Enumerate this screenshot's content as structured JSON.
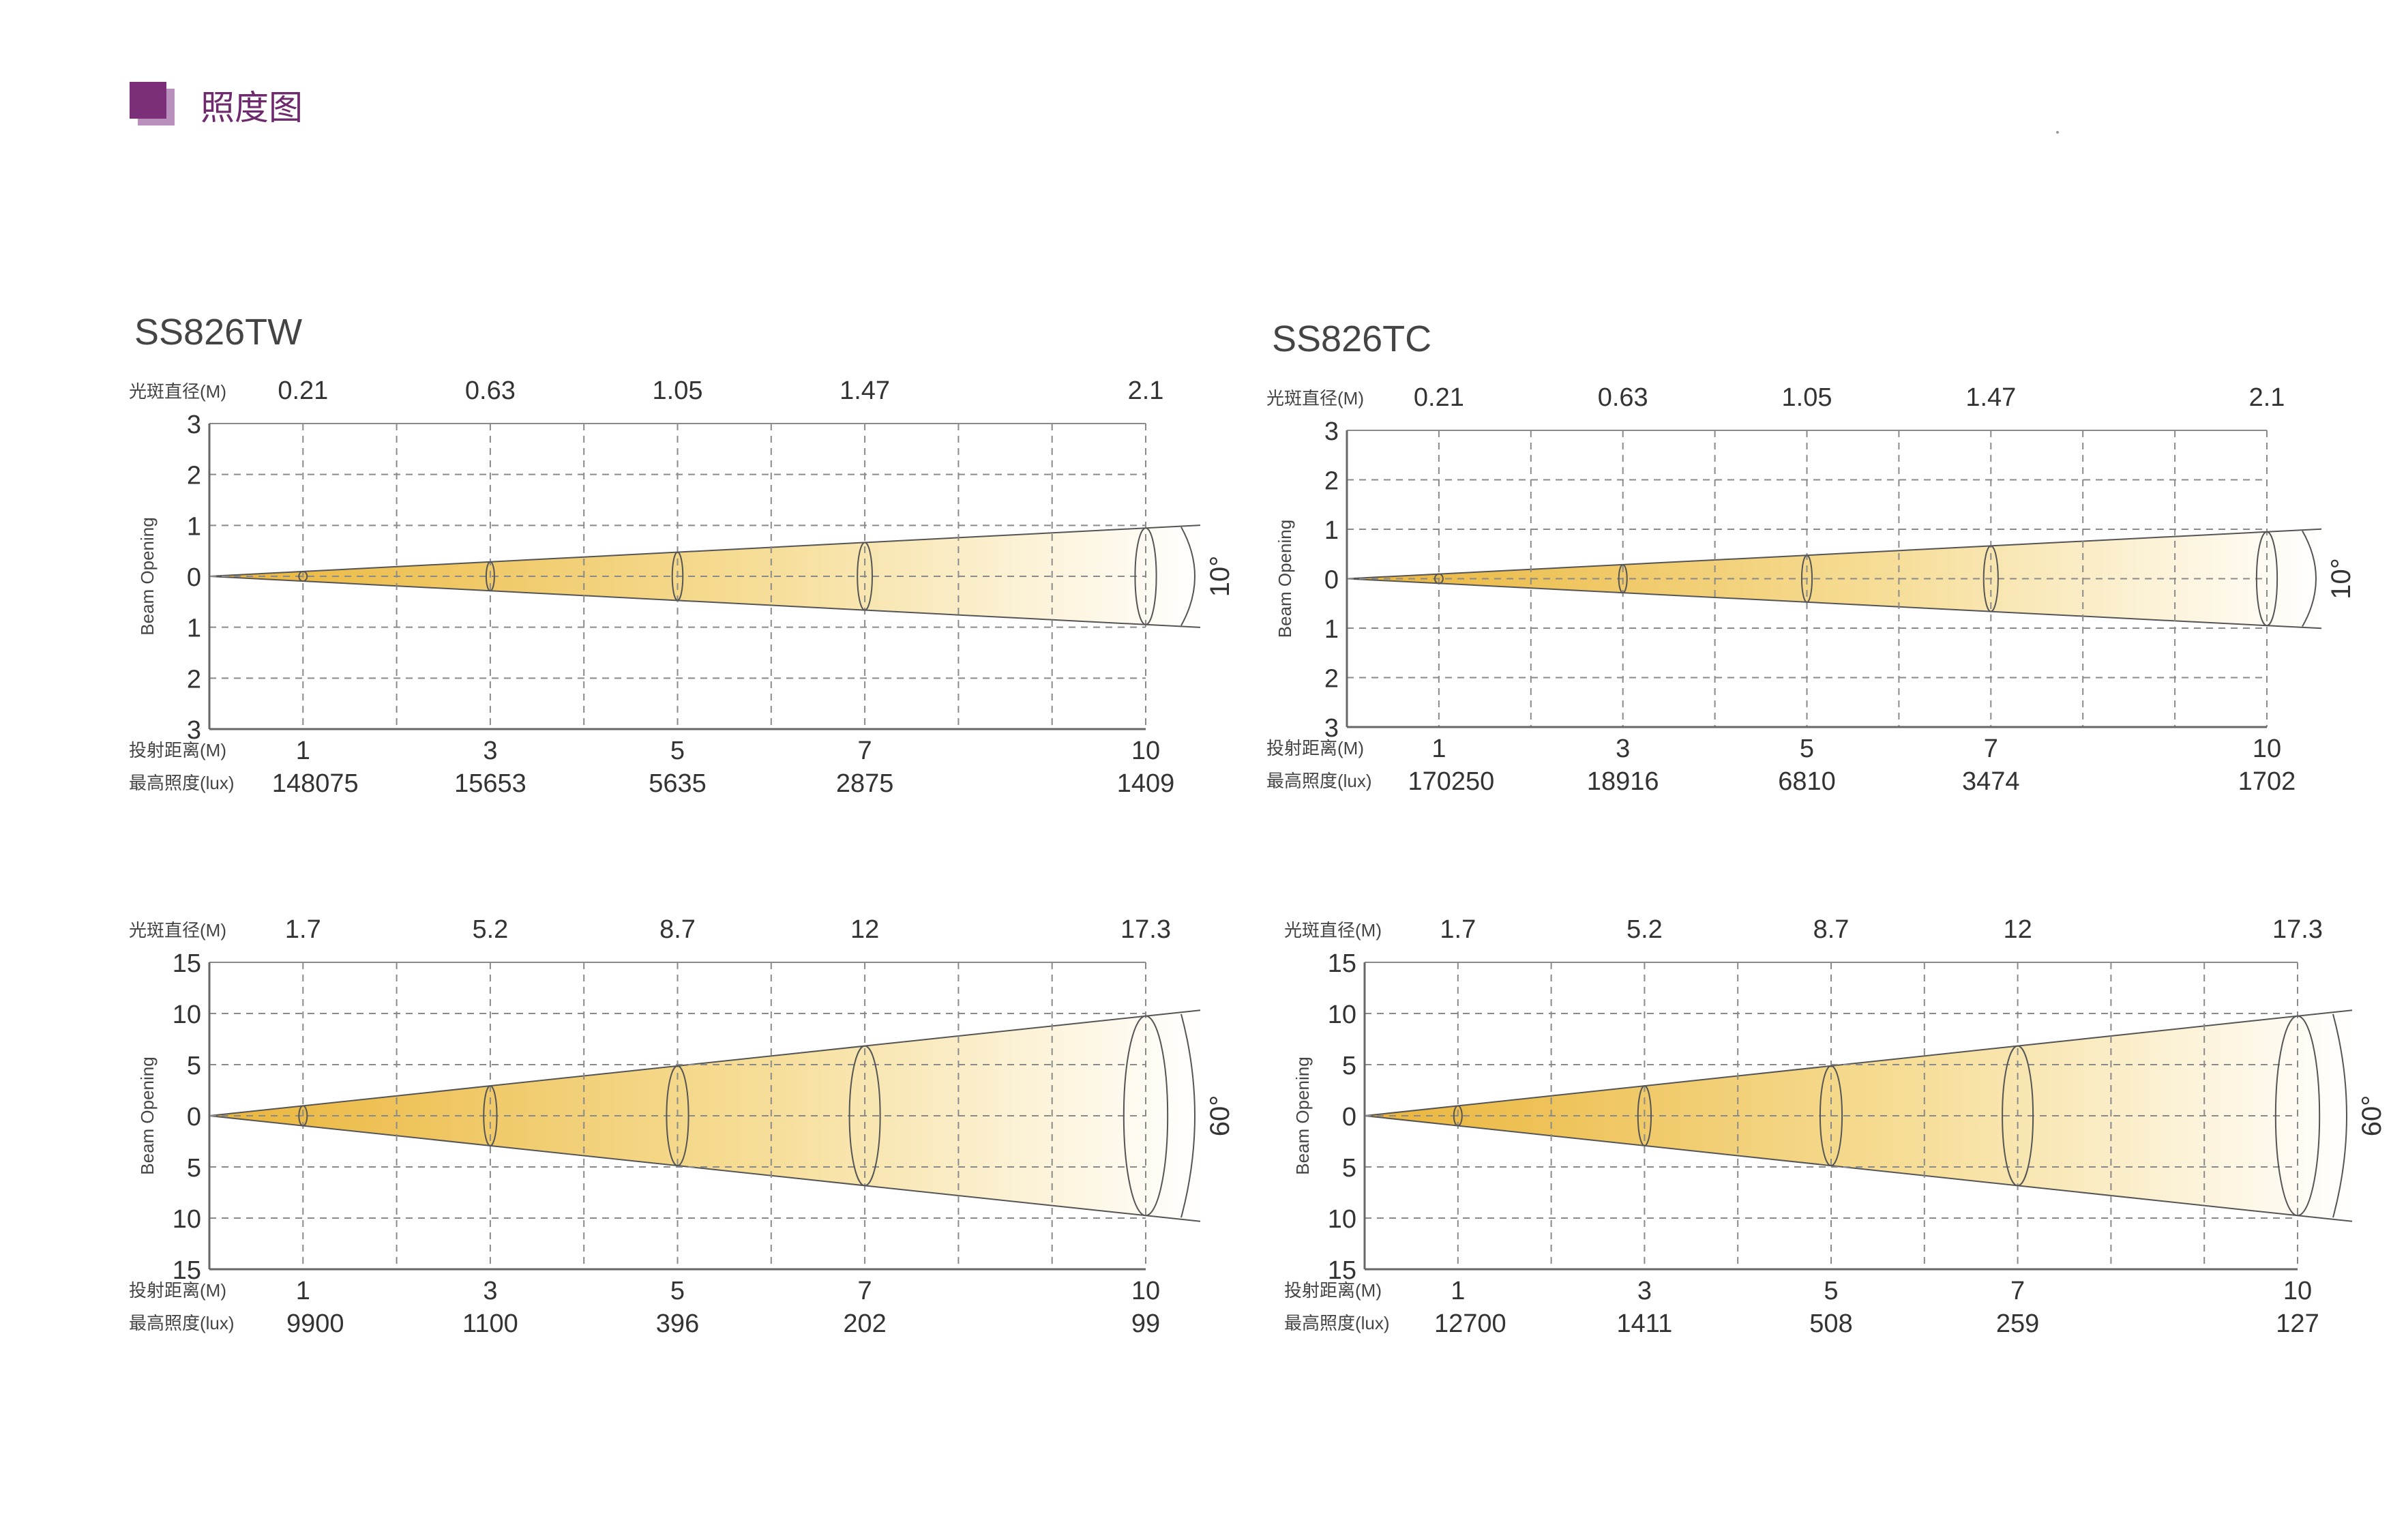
{
  "header": {
    "title": "照度图"
  },
  "labels": {
    "diameter": "光斑直径(M)",
    "distance": "投射距离(M)",
    "lux": "最高照度(lux)",
    "beam_opening": "Beam Opening"
  },
  "models": [
    "SS826TW",
    "SS826TC"
  ],
  "colors": {
    "accent": "#7a2f78",
    "beam": "#f1c84a",
    "grid": "#8a8a8a",
    "axis": "#666666"
  },
  "chart_data": [
    {
      "type": "beam-diagram",
      "title": "SS826TW",
      "angle": "10°",
      "xlabel": "投射距离(M)",
      "ylabel": "Beam Opening",
      "x_ticks": [
        "1",
        "3",
        "5",
        "7",
        "10"
      ],
      "y_tick_labels": [
        "3",
        "2",
        "1",
        "0",
        "1",
        "2",
        "3"
      ],
      "ylim": [
        -3,
        3
      ],
      "diameter_m": [
        "0.21",
        "0.63",
        "1.05",
        "1.47",
        "2.1"
      ],
      "max_lux": [
        "148075",
        "15653",
        "5635",
        "2875",
        "1409"
      ]
    },
    {
      "type": "beam-diagram",
      "title": "SS826TC",
      "angle": "10°",
      "xlabel": "投射距离(M)",
      "ylabel": "Beam Opening",
      "x_ticks": [
        "1",
        "3",
        "5",
        "7",
        "10"
      ],
      "y_tick_labels": [
        "3",
        "2",
        "1",
        "0",
        "1",
        "2",
        "3"
      ],
      "ylim": [
        -3,
        3
      ],
      "diameter_m": [
        "0.21",
        "0.63",
        "1.05",
        "1.47",
        "2.1"
      ],
      "max_lux": [
        "170250",
        "18916",
        "6810",
        "3474",
        "1702"
      ]
    },
    {
      "type": "beam-diagram",
      "title": "",
      "angle": "60°",
      "xlabel": "投射距离(M)",
      "ylabel": "Beam Opening",
      "x_ticks": [
        "1",
        "3",
        "5",
        "7",
        "10"
      ],
      "y_tick_labels": [
        "15",
        "10",
        "5",
        "0",
        "5",
        "10",
        "15"
      ],
      "ylim": [
        -15,
        15
      ],
      "diameter_m": [
        "1.7",
        "5.2",
        "8.7",
        "12",
        "17.3"
      ],
      "max_lux": [
        "9900",
        "1100",
        "396",
        "202",
        "99"
      ]
    },
    {
      "type": "beam-diagram",
      "title": "",
      "angle": "60°",
      "xlabel": "投射距离(M)",
      "ylabel": "Beam Opening",
      "x_ticks": [
        "1",
        "3",
        "5",
        "7",
        "10"
      ],
      "y_tick_labels": [
        "15",
        "10",
        "5",
        "0",
        "5",
        "10",
        "15"
      ],
      "ylim": [
        -15,
        15
      ],
      "diameter_m": [
        "1.7",
        "5.2",
        "8.7",
        "12",
        "17.3"
      ],
      "max_lux": [
        "12700",
        "1411",
        "508",
        "259",
        "127"
      ]
    }
  ]
}
